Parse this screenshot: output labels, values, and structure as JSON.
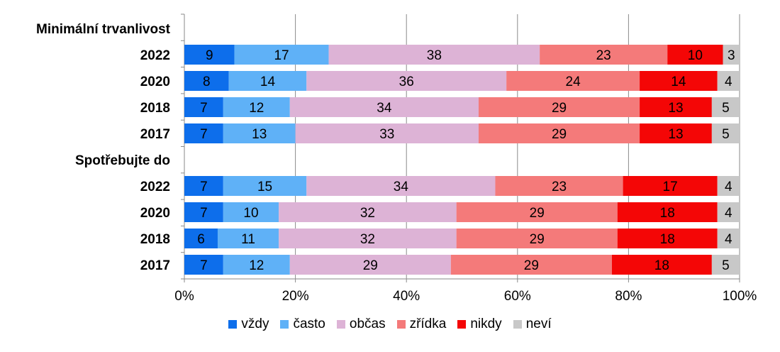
{
  "chart_data": {
    "type": "bar",
    "orientation": "horizontal",
    "stacked": true,
    "xlim": [
      0,
      100
    ],
    "x_ticks": [
      "0%",
      "20%",
      "40%",
      "60%",
      "80%",
      "100%"
    ],
    "grid": true,
    "legend_position": "bottom",
    "series": [
      {
        "name": "vždy",
        "color": "#0D6EEB"
      },
      {
        "name": "často",
        "color": "#5FB1F7"
      },
      {
        "name": "občas",
        "color": "#DDB3D6"
      },
      {
        "name": "zřídka",
        "color": "#F47A7A"
      },
      {
        "name": "nikdy",
        "color": "#F40606"
      },
      {
        "name": "neví",
        "color": "#C8C8C8"
      }
    ],
    "groups": [
      {
        "label": "Minimální trvanlivost",
        "rows": [
          {
            "label": "2022",
            "values": [
              9,
              17,
              38,
              23,
              10,
              3
            ]
          },
          {
            "label": "2020",
            "values": [
              8,
              14,
              36,
              24,
              14,
              4
            ]
          },
          {
            "label": "2018",
            "values": [
              7,
              12,
              34,
              29,
              13,
              5
            ]
          },
          {
            "label": "2017",
            "values": [
              7,
              13,
              33,
              29,
              13,
              5
            ]
          }
        ]
      },
      {
        "label": "Spotřebujte do",
        "rows": [
          {
            "label": "2022",
            "values": [
              7,
              15,
              34,
              23,
              17,
              4
            ]
          },
          {
            "label": "2020",
            "values": [
              7,
              10,
              32,
              29,
              18,
              4
            ]
          },
          {
            "label": "2018",
            "values": [
              6,
              11,
              32,
              29,
              18,
              4
            ]
          },
          {
            "label": "2017",
            "values": [
              7,
              12,
              29,
              29,
              18,
              5
            ]
          }
        ]
      }
    ]
  }
}
